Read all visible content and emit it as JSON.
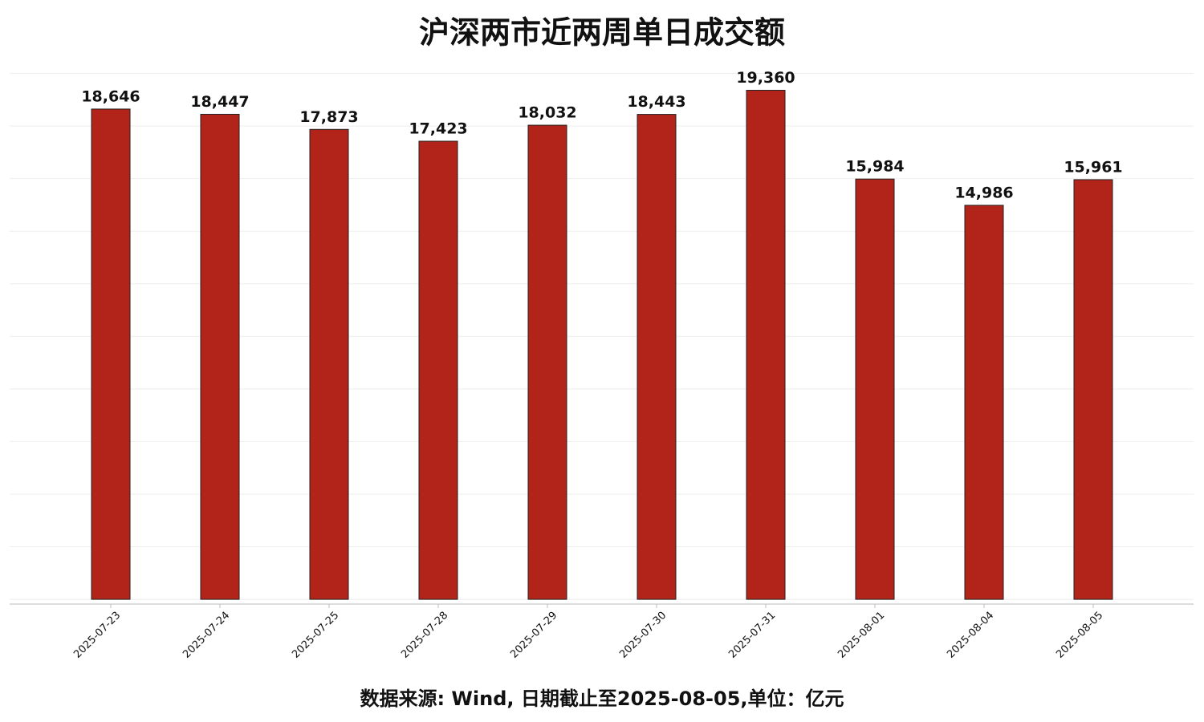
{
  "chart_data": {
    "type": "bar",
    "title": "沪深两市近两周单日成交额",
    "caption": "数据来源: Wind, 日期截止至2025-08-05,单位：亿元",
    "categories": [
      "2025-07-23",
      "2025-07-24",
      "2025-07-25",
      "2025-07-28",
      "2025-07-29",
      "2025-07-30",
      "2025-07-31",
      "2025-08-01",
      "2025-08-04",
      "2025-08-05"
    ],
    "values": [
      18646,
      18447,
      17873,
      17423,
      18032,
      18443,
      19360,
      15984,
      14986,
      15961
    ],
    "value_labels": [
      "18,646",
      "18,447",
      "17,873",
      "17,423",
      "18,032",
      "18,443",
      "19,360",
      "15,984",
      "14,986",
      "15,961"
    ],
    "color": "#b22319",
    "ylim": [
      -180,
      20200
    ],
    "yticks": [
      0,
      2000,
      4000,
      6000,
      8000,
      10000,
      12000,
      14000,
      16000,
      18000,
      20000
    ],
    "grid": true
  }
}
